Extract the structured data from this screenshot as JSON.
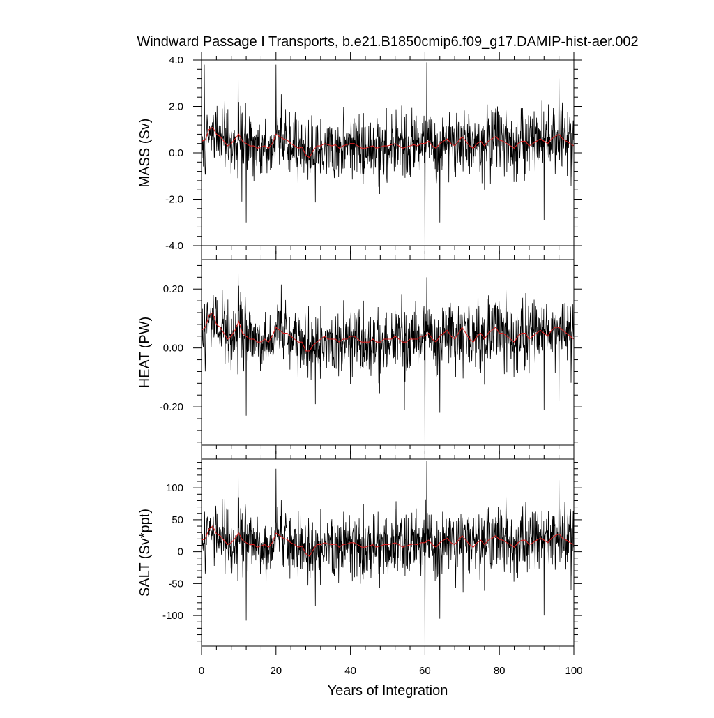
{
  "chart_data": {
    "type": "line",
    "title": "Windward Passage I Transports, b.e21.B1850cmip6.f09_g17.DAMIP-hist-aer.002",
    "xlabel": "Years of Integration",
    "xlim": [
      0,
      100
    ],
    "xticks": [
      0,
      20,
      40,
      60,
      80,
      100
    ],
    "xtick_labels": [
      "0",
      "20",
      "40",
      "60",
      "80",
      "100"
    ],
    "grid": false,
    "series_colors": {
      "monthly": "#000000",
      "annual_mean": "#d92020"
    },
    "panels": [
      {
        "ylabel": "MASS (Sv)",
        "ylim": [
          -4.0,
          4.0
        ],
        "yticks": [
          4.0,
          2.0,
          0.0,
          -2.0,
          -4.0
        ],
        "ytick_labels": [
          "4.0",
          "2.0",
          "0.0",
          "-2.0",
          "-4.0"
        ],
        "series": [
          {
            "values_kind": "monthly",
            "amplitude": 0.75,
            "mean": 0.1,
            "spikes": [
              [
                0.75,
                3.8
              ],
              [
                9.8,
                3.9
              ],
              [
                12.0,
                -3.0
              ],
              [
                10.8,
                -2.1
              ],
              [
                60.5,
                3.9
              ],
              [
                60.0,
                -4.0
              ],
              [
                64.0,
                -3.0
              ],
              [
                92.0,
                -2.9
              ],
              [
                96.0,
                3.2
              ],
              [
                20.0,
                3.8
              ]
            ]
          },
          {
            "values_kind": "annual_mean",
            "values": [
              0.5,
              0.55,
              1.0,
              1.1,
              0.8,
              0.7,
              0.5,
              0.3,
              0.4,
              0.6,
              0.8,
              0.5,
              0.4,
              0.3,
              0.3,
              0.2,
              0.25,
              0.3,
              0.2,
              0.4,
              0.8,
              0.7,
              0.6,
              0.55,
              0.4,
              0.3,
              0.2,
              0.25,
              -0.1,
              -0.2,
              0.1,
              0.3,
              0.3,
              0.4,
              0.35,
              0.3,
              0.35,
              0.2,
              0.3,
              0.35,
              0.4,
              0.4,
              0.3,
              0.2,
              0.2,
              0.25,
              0.3,
              0.2,
              0.25,
              0.3,
              0.3,
              0.35,
              0.4,
              0.3,
              0.2,
              0.25,
              0.3,
              0.35,
              0.3,
              0.4,
              0.4,
              0.5,
              0.3,
              0.2,
              0.4,
              0.5,
              0.6,
              0.4,
              0.3,
              0.5,
              0.7,
              0.5,
              0.3,
              0.2,
              0.4,
              0.5,
              0.3,
              0.5,
              0.6,
              0.7,
              0.55,
              0.5,
              0.4,
              0.3,
              0.2,
              0.4,
              0.5,
              0.5,
              0.3,
              0.4,
              0.5,
              0.6,
              0.5,
              0.4,
              0.6,
              0.7,
              0.8,
              0.6,
              0.5,
              0.4,
              0.3
            ]
          }
        ]
      },
      {
        "ylabel": "HEAT (PW)",
        "ylim": [
          -0.33,
          0.3
        ],
        "yticks": [
          0.2,
          0.0,
          -0.2
        ],
        "ytick_labels": [
          "0.20",
          "0.00",
          "-0.20"
        ],
        "series": [
          {
            "values_kind": "monthly",
            "amplitude": 0.06,
            "mean": 0.03,
            "spikes": [
              [
                9.8,
                0.29
              ],
              [
                12.0,
                -0.23
              ],
              [
                60.0,
                -0.33
              ],
              [
                60.5,
                0.24
              ],
              [
                64.0,
                -0.22
              ],
              [
                92.0,
                -0.21
              ],
              [
                54.5,
                -0.21
              ],
              [
                96.0,
                -0.18
              ]
            ]
          },
          {
            "values_kind": "annual_mean",
            "values": [
              0.06,
              0.07,
              0.11,
              0.12,
              0.08,
              0.07,
              0.05,
              0.03,
              0.04,
              0.06,
              0.09,
              0.05,
              0.04,
              0.03,
              0.03,
              0.02,
              0.02,
              0.03,
              0.02,
              0.04,
              0.07,
              0.06,
              0.05,
              0.05,
              0.04,
              0.03,
              0.02,
              0.02,
              -0.01,
              -0.01,
              0.01,
              0.02,
              0.03,
              0.04,
              0.03,
              0.03,
              0.03,
              0.02,
              0.03,
              0.03,
              0.04,
              0.04,
              0.03,
              0.02,
              0.02,
              0.02,
              0.03,
              0.02,
              0.02,
              0.03,
              0.03,
              0.03,
              0.04,
              0.03,
              0.02,
              0.02,
              0.03,
              0.03,
              0.03,
              0.04,
              0.04,
              0.05,
              0.03,
              0.02,
              0.04,
              0.05,
              0.06,
              0.04,
              0.03,
              0.05,
              0.07,
              0.05,
              0.03,
              0.02,
              0.04,
              0.05,
              0.03,
              0.05,
              0.06,
              0.07,
              0.05,
              0.05,
              0.04,
              0.03,
              0.02,
              0.04,
              0.05,
              0.05,
              0.03,
              0.04,
              0.05,
              0.06,
              0.05,
              0.04,
              0.06,
              0.07,
              0.07,
              0.06,
              0.05,
              0.04,
              0.03
            ]
          }
        ]
      },
      {
        "ylabel": "SALT (Sv*ppt)",
        "ylim": [
          -148,
          145
        ],
        "yticks": [
          100,
          50,
          0,
          -50,
          -100
        ],
        "ytick_labels": [
          "100",
          "50",
          "0",
          "-50",
          "-100"
        ],
        "series": [
          {
            "values_kind": "monthly",
            "amplitude": 27,
            "mean": 4,
            "spikes": [
              [
                9.8,
                138
              ],
              [
                12.0,
                -108
              ],
              [
                20.0,
                130
              ],
              [
                60.0,
                -148
              ],
              [
                60.5,
                142
              ],
              [
                64.0,
                -105
              ],
              [
                92.0,
                -100
              ],
              [
                96.0,
                112
              ]
            ]
          },
          {
            "values_kind": "annual_mean",
            "values": [
              18,
              20,
              35,
              40,
              28,
              25,
              18,
              11,
              14,
              21,
              29,
              18,
              14,
              11,
              11,
              7,
              9,
              11,
              7,
              14,
              29,
              25,
              21,
              19,
              14,
              11,
              7,
              9,
              -3,
              -7,
              3,
              11,
              11,
              14,
              12,
              11,
              12,
              7,
              11,
              12,
              14,
              14,
              11,
              7,
              7,
              9,
              11,
              7,
              9,
              11,
              11,
              12,
              14,
              11,
              7,
              9,
              11,
              12,
              11,
              14,
              14,
              18,
              11,
              7,
              14,
              18,
              21,
              14,
              11,
              18,
              25,
              18,
              11,
              7,
              14,
              18,
              11,
              18,
              21,
              25,
              19,
              18,
              14,
              11,
              7,
              14,
              18,
              18,
              11,
              14,
              18,
              21,
              18,
              14,
              21,
              25,
              28,
              21,
              18,
              14,
              11
            ]
          }
        ]
      }
    ]
  }
}
